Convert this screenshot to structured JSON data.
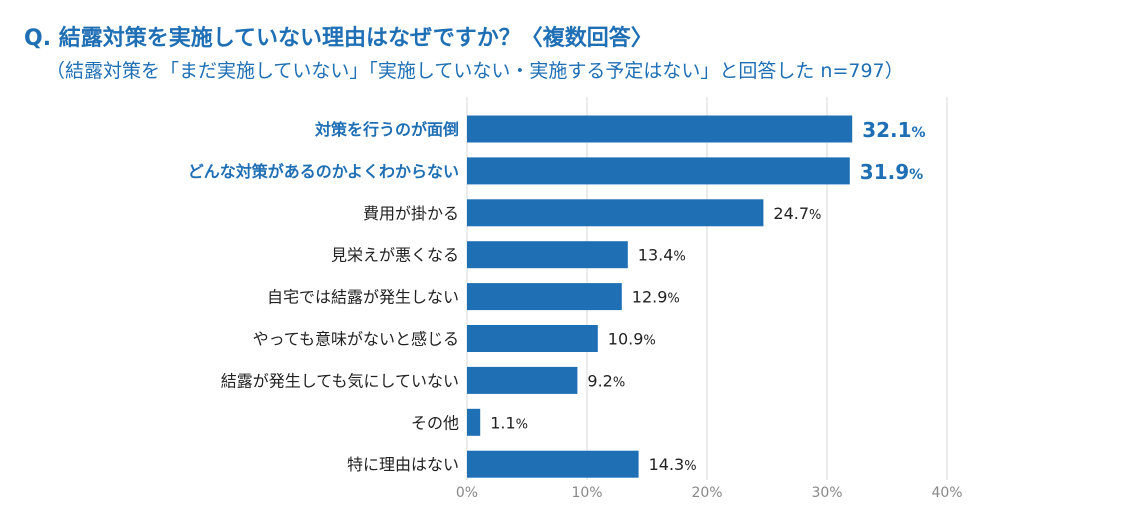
{
  "chart_data": {
    "type": "bar",
    "orientation": "horizontal",
    "title": "Q. 結露対策を実施していない理由はなぜですか？〈複数回答〉",
    "subtitle": "（結露対策を「まだ実施していない」「実施していない・実施する予定はない」と回答した n=797）",
    "categories": [
      "対策を行うのが面倒",
      "どんな対策があるのかよくわからない",
      "費用が掛かる",
      "見栄えが悪くなる",
      "自宅では結露が発生しない",
      "やっても意味がないと感じる",
      "結露が発生しても気にしていない",
      "その他",
      "特に理由はない"
    ],
    "values": [
      32.1,
      31.9,
      24.7,
      13.4,
      12.9,
      10.9,
      9.2,
      1.1,
      14.3
    ],
    "highlighted": [
      true,
      true,
      false,
      false,
      false,
      false,
      false,
      false,
      false
    ],
    "value_unit": "%",
    "xlim": [
      0,
      40
    ],
    "xticks": [
      0,
      10,
      20,
      30,
      40
    ],
    "xtick_labels": [
      "0%",
      "10%",
      "20%",
      "30%",
      "40%"
    ],
    "grid": true,
    "colors": {
      "bar": "#1f6fb5",
      "highlight_text": "#1f6fb5",
      "grid": "#d9d9d9"
    }
  }
}
